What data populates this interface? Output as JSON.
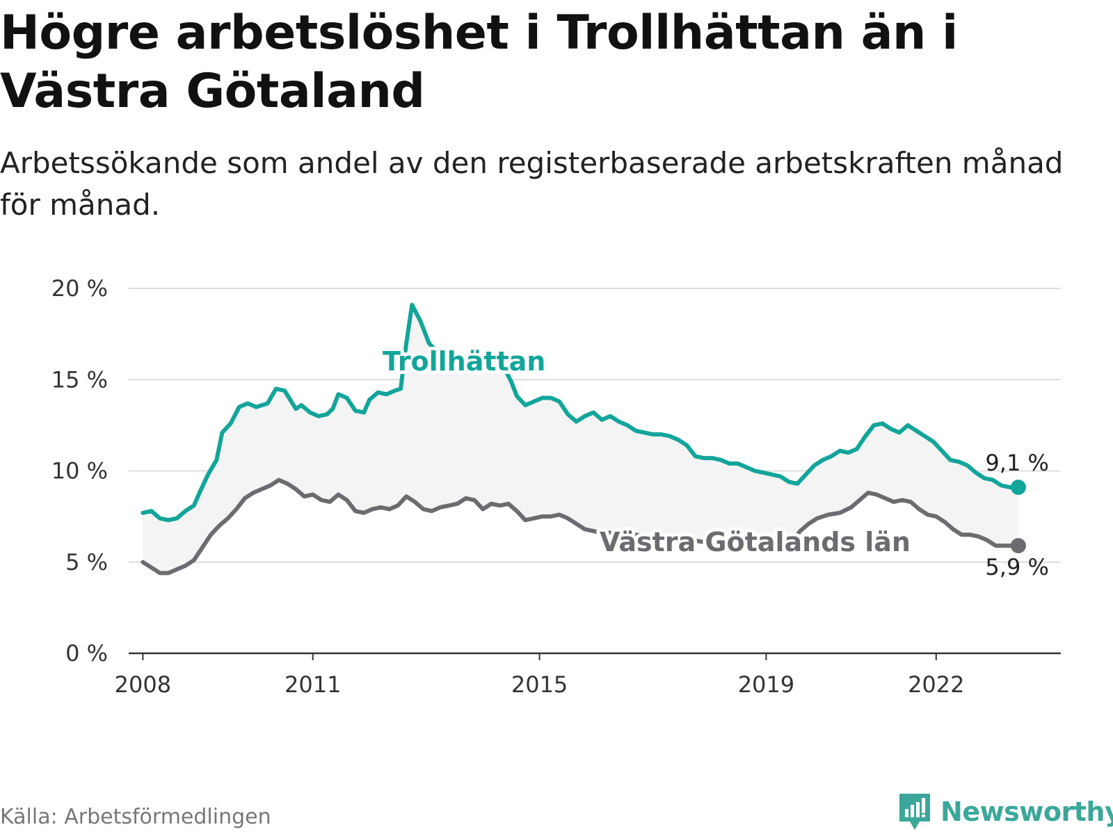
{
  "header": {
    "title": "Högre arbetslöshet i Trollhättan än i Västra Götaland",
    "subtitle": "Arbetssökande som andel av den registerbaserade arbetskraften månad för månad."
  },
  "footer": {
    "source": "Källa: Arbetsförmedlingen",
    "brand": "Newsworthy"
  },
  "colors": {
    "trollhattan": "#12a59a",
    "vastra": "#6b6b70",
    "band": "#f4f4f4",
    "grid": "#dcdcdc",
    "axis": "#333333",
    "brand": "#3aa79a"
  },
  "chart_data": {
    "type": "line",
    "title": "Högre arbetslöshet i Trollhättan än i Västra Götaland",
    "xlabel": "",
    "ylabel": "",
    "xlim": [
      2007.75,
      2024.2
    ],
    "ylim": [
      0,
      20
    ],
    "y_ticks": [
      0,
      5,
      10,
      15,
      20
    ],
    "y_tick_labels": [
      "0 %",
      "5 %",
      "10 %",
      "15 %",
      "20 %"
    ],
    "x_ticks": [
      2008,
      2011,
      2015,
      2019,
      2022
    ],
    "x_tick_labels": [
      "2008",
      "2011",
      "2015",
      "2019",
      "2022"
    ],
    "grid": true,
    "series": [
      {
        "name": "Trollhättan",
        "label": "Trollhättan",
        "end_label": "9,1 %",
        "end_value": 9.1,
        "points": [
          [
            2008.0,
            7.7
          ],
          [
            2008.15,
            7.8
          ],
          [
            2008.3,
            7.4
          ],
          [
            2008.45,
            7.3
          ],
          [
            2008.6,
            7.4
          ],
          [
            2008.75,
            7.8
          ],
          [
            2008.9,
            8.1
          ],
          [
            2009.0,
            8.8
          ],
          [
            2009.15,
            9.8
          ],
          [
            2009.3,
            10.6
          ],
          [
            2009.4,
            12.1
          ],
          [
            2009.55,
            12.6
          ],
          [
            2009.7,
            13.5
          ],
          [
            2009.85,
            13.7
          ],
          [
            2010.0,
            13.5
          ],
          [
            2010.2,
            13.7
          ],
          [
            2010.35,
            14.5
          ],
          [
            2010.5,
            14.4
          ],
          [
            2010.6,
            13.9
          ],
          [
            2010.7,
            13.4
          ],
          [
            2010.8,
            13.6
          ],
          [
            2010.95,
            13.2
          ],
          [
            2011.1,
            13.0
          ],
          [
            2011.25,
            13.1
          ],
          [
            2011.35,
            13.4
          ],
          [
            2011.45,
            14.2
          ],
          [
            2011.6,
            14.0
          ],
          [
            2011.75,
            13.3
          ],
          [
            2011.9,
            13.2
          ],
          [
            2012.0,
            13.9
          ],
          [
            2012.15,
            14.3
          ],
          [
            2012.3,
            14.2
          ],
          [
            2012.45,
            14.4
          ],
          [
            2012.55,
            14.5
          ],
          [
            2012.65,
            17.0
          ],
          [
            2012.75,
            19.1
          ],
          [
            2012.9,
            18.2
          ],
          [
            2013.05,
            17.0
          ],
          [
            2013.2,
            16.5
          ],
          [
            2013.4,
            16.4
          ],
          [
            2013.6,
            16.2
          ],
          [
            2013.8,
            16.0
          ],
          [
            2013.95,
            15.8
          ],
          [
            2014.1,
            15.6
          ],
          [
            2014.25,
            15.8
          ],
          [
            2014.4,
            15.5
          ],
          [
            2014.5,
            14.9
          ],
          [
            2014.6,
            14.1
          ],
          [
            2014.75,
            13.6
          ],
          [
            2014.9,
            13.8
          ],
          [
            2015.05,
            14.0
          ],
          [
            2015.2,
            14.0
          ],
          [
            2015.35,
            13.8
          ],
          [
            2015.5,
            13.1
          ],
          [
            2015.65,
            12.7
          ],
          [
            2015.8,
            13.0
          ],
          [
            2015.95,
            13.2
          ],
          [
            2016.1,
            12.8
          ],
          [
            2016.25,
            13.0
          ],
          [
            2016.4,
            12.7
          ],
          [
            2016.55,
            12.5
          ],
          [
            2016.7,
            12.2
          ],
          [
            2016.85,
            12.1
          ],
          [
            2017.0,
            12.0
          ],
          [
            2017.15,
            12.0
          ],
          [
            2017.3,
            11.9
          ],
          [
            2017.45,
            11.7
          ],
          [
            2017.6,
            11.4
          ],
          [
            2017.75,
            10.8
          ],
          [
            2017.9,
            10.7
          ],
          [
            2018.05,
            10.7
          ],
          [
            2018.2,
            10.6
          ],
          [
            2018.35,
            10.4
          ],
          [
            2018.5,
            10.4
          ],
          [
            2018.65,
            10.2
          ],
          [
            2018.8,
            10.0
          ],
          [
            2018.95,
            9.9
          ],
          [
            2019.1,
            9.8
          ],
          [
            2019.25,
            9.7
          ],
          [
            2019.4,
            9.4
          ],
          [
            2019.55,
            9.3
          ],
          [
            2019.7,
            9.8
          ],
          [
            2019.85,
            10.3
          ],
          [
            2020.0,
            10.6
          ],
          [
            2020.15,
            10.8
          ],
          [
            2020.3,
            11.1
          ],
          [
            2020.45,
            11.0
          ],
          [
            2020.6,
            11.2
          ],
          [
            2020.75,
            11.9
          ],
          [
            2020.9,
            12.5
          ],
          [
            2021.05,
            12.6
          ],
          [
            2021.2,
            12.3
          ],
          [
            2021.35,
            12.1
          ],
          [
            2021.5,
            12.5
          ],
          [
            2021.65,
            12.2
          ],
          [
            2021.8,
            11.9
          ],
          [
            2021.95,
            11.6
          ],
          [
            2022.1,
            11.1
          ],
          [
            2022.25,
            10.6
          ],
          [
            2022.4,
            10.5
          ],
          [
            2022.55,
            10.3
          ],
          [
            2022.7,
            9.9
          ],
          [
            2022.85,
            9.6
          ],
          [
            2023.0,
            9.5
          ],
          [
            2023.15,
            9.2
          ],
          [
            2023.3,
            9.1
          ],
          [
            2023.45,
            9.1
          ]
        ]
      },
      {
        "name": "Västra Götalands län",
        "label": "Västra Götalands län",
        "end_label": "5,9 %",
        "end_value": 5.9,
        "points": [
          [
            2008.0,
            5.0
          ],
          [
            2008.15,
            4.7
          ],
          [
            2008.3,
            4.4
          ],
          [
            2008.45,
            4.4
          ],
          [
            2008.6,
            4.6
          ],
          [
            2008.75,
            4.8
          ],
          [
            2008.9,
            5.1
          ],
          [
            2009.05,
            5.8
          ],
          [
            2009.2,
            6.5
          ],
          [
            2009.35,
            7.0
          ],
          [
            2009.5,
            7.4
          ],
          [
            2009.65,
            7.9
          ],
          [
            2009.8,
            8.5
          ],
          [
            2009.95,
            8.8
          ],
          [
            2010.1,
            9.0
          ],
          [
            2010.25,
            9.2
          ],
          [
            2010.4,
            9.5
          ],
          [
            2010.55,
            9.3
          ],
          [
            2010.7,
            9.0
          ],
          [
            2010.85,
            8.6
          ],
          [
            2011.0,
            8.7
          ],
          [
            2011.15,
            8.4
          ],
          [
            2011.3,
            8.3
          ],
          [
            2011.45,
            8.7
          ],
          [
            2011.6,
            8.4
          ],
          [
            2011.75,
            7.8
          ],
          [
            2011.9,
            7.7
          ],
          [
            2012.05,
            7.9
          ],
          [
            2012.2,
            8.0
          ],
          [
            2012.35,
            7.9
          ],
          [
            2012.5,
            8.1
          ],
          [
            2012.65,
            8.6
          ],
          [
            2012.8,
            8.3
          ],
          [
            2012.95,
            7.9
          ],
          [
            2013.1,
            7.8
          ],
          [
            2013.25,
            8.0
          ],
          [
            2013.4,
            8.1
          ],
          [
            2013.55,
            8.2
          ],
          [
            2013.7,
            8.5
          ],
          [
            2013.85,
            8.4
          ],
          [
            2014.0,
            7.9
          ],
          [
            2014.15,
            8.2
          ],
          [
            2014.3,
            8.1
          ],
          [
            2014.45,
            8.2
          ],
          [
            2014.6,
            7.8
          ],
          [
            2014.75,
            7.3
          ],
          [
            2014.9,
            7.4
          ],
          [
            2015.05,
            7.5
          ],
          [
            2015.2,
            7.5
          ],
          [
            2015.35,
            7.6
          ],
          [
            2015.5,
            7.4
          ],
          [
            2015.65,
            7.1
          ],
          [
            2015.8,
            6.8
          ],
          [
            2015.95,
            6.7
          ],
          [
            2016.1,
            6.6
          ],
          [
            2016.3,
            6.6
          ],
          [
            2016.5,
            6.5
          ],
          [
            2016.7,
            6.5
          ],
          [
            2016.9,
            6.4
          ],
          [
            2017.1,
            6.4
          ],
          [
            2017.3,
            6.3
          ],
          [
            2017.5,
            6.2
          ],
          [
            2017.7,
            6.2
          ],
          [
            2017.9,
            6.1
          ],
          [
            2018.1,
            6.1
          ],
          [
            2018.3,
            6.0
          ],
          [
            2018.5,
            6.0
          ],
          [
            2018.7,
            5.9
          ],
          [
            2018.9,
            5.9
          ],
          [
            2019.1,
            5.9
          ],
          [
            2019.3,
            6.0
          ],
          [
            2019.45,
            6.1
          ],
          [
            2019.6,
            6.7
          ],
          [
            2019.75,
            7.1
          ],
          [
            2019.9,
            7.4
          ],
          [
            2020.1,
            7.6
          ],
          [
            2020.3,
            7.7
          ],
          [
            2020.5,
            8.0
          ],
          [
            2020.65,
            8.4
          ],
          [
            2020.8,
            8.8
          ],
          [
            2020.95,
            8.7
          ],
          [
            2021.1,
            8.5
          ],
          [
            2021.25,
            8.3
          ],
          [
            2021.4,
            8.4
          ],
          [
            2021.55,
            8.3
          ],
          [
            2021.7,
            7.9
          ],
          [
            2021.85,
            7.6
          ],
          [
            2022.0,
            7.5
          ],
          [
            2022.15,
            7.2
          ],
          [
            2022.3,
            6.8
          ],
          [
            2022.45,
            6.5
          ],
          [
            2022.6,
            6.5
          ],
          [
            2022.75,
            6.4
          ],
          [
            2022.9,
            6.2
          ],
          [
            2023.05,
            5.9
          ],
          [
            2023.2,
            5.9
          ],
          [
            2023.35,
            5.9
          ],
          [
            2023.45,
            5.9
          ]
        ]
      }
    ]
  }
}
